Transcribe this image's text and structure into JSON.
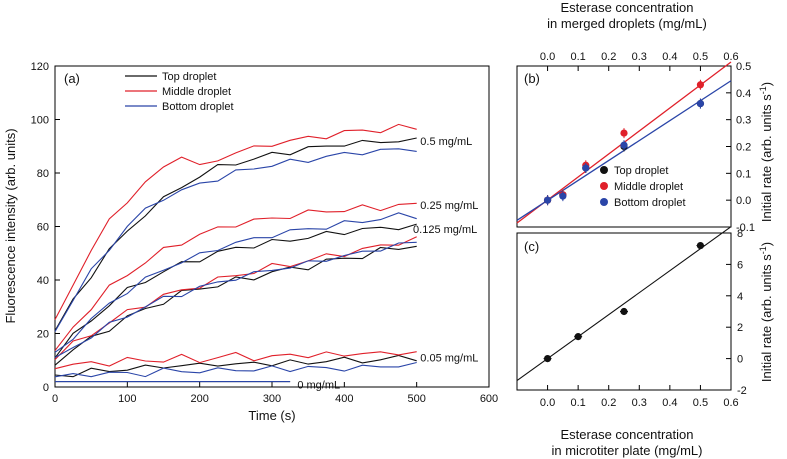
{
  "colors": {
    "top": "#111111",
    "middle": "#e0202a",
    "bottom": "#2a45a8",
    "fit_middle": "#e0202a",
    "fit_bottom": "#2a45a8"
  },
  "chart_data": [
    {
      "id": "a",
      "type": "line",
      "panel_label": "(a)",
      "xlabel": "Time (s)",
      "ylabel": "Fluorescence intensity (arb. units)",
      "xlim": [
        0,
        600
      ],
      "ylim": [
        0,
        120
      ],
      "xticks": [
        0,
        100,
        200,
        300,
        400,
        500,
        600
      ],
      "yticks": [
        0,
        20,
        40,
        60,
        80,
        100,
        120
      ],
      "legend": {
        "placement": "top-left",
        "entries": [
          "Top droplet",
          "Middle droplet",
          "Bottom droplet"
        ]
      },
      "annotations": [
        {
          "text": "0.5 mg/mL",
          "x": 505,
          "y": 92
        },
        {
          "text": "0.25 mg/mL",
          "x": 505,
          "y": 68
        },
        {
          "text": "0.125 mg/mL",
          "x": 495,
          "y": 59
        },
        {
          "text": "0.05 mg/mL",
          "x": 505,
          "y": 11
        },
        {
          "text": "0 mg/mL",
          "x": 335,
          "y": 1
        }
      ],
      "x": [
        0,
        25,
        50,
        75,
        100,
        125,
        150,
        175,
        200,
        225,
        250,
        275,
        300,
        325,
        350,
        375,
        400,
        425,
        450,
        475,
        500
      ],
      "series": [
        {
          "name": "Top droplet 0.5 mg/mL",
          "group": "top",
          "values": [
            21,
            32,
            42,
            51,
            58,
            65,
            70,
            75,
            79,
            82,
            84,
            85,
            87,
            88,
            89,
            90,
            91,
            91,
            92,
            92,
            92
          ]
        },
        {
          "name": "Middle droplet 0.5 mg/mL",
          "group": "middle",
          "values": [
            24,
            39,
            51,
            62,
            70,
            76,
            82,
            87,
            82,
            85,
            88,
            89,
            91,
            92,
            93,
            94,
            95,
            96,
            96,
            97,
            97
          ]
        },
        {
          "name": "Bottom droplet 0.5 mg/mL",
          "group": "bottom",
          "values": [
            21,
            33,
            43,
            52,
            60,
            66,
            71,
            73,
            76,
            78,
            80,
            82,
            83,
            84,
            85,
            86,
            87,
            88,
            88,
            89,
            89
          ]
        },
        {
          "name": "Top droplet 0.25 mg/mL",
          "group": "top",
          "values": [
            12,
            19,
            25,
            31,
            36,
            40,
            43,
            46,
            48,
            50,
            52,
            53,
            54,
            55,
            56,
            57,
            58,
            59,
            59,
            60,
            60
          ]
        },
        {
          "name": "Middle droplet 0.25 mg/mL",
          "group": "middle",
          "values": [
            13,
            22,
            30,
            37,
            42,
            47,
            51,
            54,
            57,
            59,
            61,
            62,
            63,
            64,
            65,
            66,
            66,
            67,
            67,
            68,
            68
          ]
        },
        {
          "name": "Bottom droplet 0.25 mg/mL",
          "group": "bottom",
          "values": [
            12,
            19,
            25,
            31,
            36,
            40,
            44,
            47,
            49,
            52,
            54,
            55,
            57,
            58,
            59,
            60,
            61,
            62,
            63,
            64,
            64
          ]
        },
        {
          "name": "Top droplet 0.125 mg/mL",
          "group": "top",
          "values": [
            9,
            14,
            18,
            22,
            26,
            29,
            32,
            35,
            37,
            38,
            40,
            41,
            43,
            44,
            45,
            47,
            48,
            49,
            51,
            52,
            53
          ]
        },
        {
          "name": "Middle droplet 0.125 mg/mL",
          "group": "middle",
          "values": [
            11,
            16,
            20,
            24,
            28,
            31,
            34,
            36,
            38,
            40,
            42,
            43,
            45,
            46,
            47,
            49,
            50,
            51,
            53,
            54,
            55
          ]
        },
        {
          "name": "Bottom droplet 0.125 mg/mL",
          "group": "bottom",
          "values": [
            10,
            15,
            19,
            23,
            27,
            30,
            33,
            35,
            37,
            39,
            41,
            42,
            44,
            45,
            46,
            48,
            49,
            50,
            52,
            53,
            54
          ]
        },
        {
          "name": "Top droplet 0.05 mg/mL",
          "group": "top",
          "values": [
            4,
            5,
            6,
            6,
            7,
            7,
            8,
            8,
            8,
            9,
            8,
            9,
            9,
            9,
            9,
            10,
            10,
            10,
            10,
            11,
            11
          ]
        },
        {
          "name": "Middle droplet 0.05 mg/mL",
          "group": "middle",
          "values": [
            8,
            8,
            9,
            9,
            10,
            10,
            10,
            11,
            10,
            11,
            12,
            11,
            11,
            12,
            12,
            12,
            12,
            13,
            12,
            13,
            13
          ]
        },
        {
          "name": "Bottom droplet 0.05 mg/mL",
          "group": "bottom",
          "values": [
            4,
            4,
            5,
            5,
            5,
            5,
            6,
            6,
            6,
            6,
            7,
            6,
            7,
            7,
            7,
            7,
            7,
            7,
            8,
            8,
            8
          ]
        },
        {
          "name": "Top droplet 0 mg/mL",
          "group": "top",
          "values": [
            2,
            2,
            2,
            2,
            2,
            2,
            2,
            2,
            2,
            2,
            2,
            2,
            2,
            2,
            null,
            null,
            null,
            null,
            null,
            null,
            null
          ]
        },
        {
          "name": "Bottom droplet 0 mg/mL",
          "group": "bottom",
          "values": [
            2,
            2,
            2,
            2,
            2,
            2,
            2,
            2,
            2,
            2,
            2,
            2,
            2,
            2,
            null,
            null,
            null,
            null,
            null,
            null,
            null
          ]
        }
      ]
    },
    {
      "id": "b",
      "type": "scatter",
      "panel_label": "(b)",
      "xlabel_top": [
        "Esterase concentration",
        "in merged droplets (mg/mL)"
      ],
      "ylabel": "Initial rate (arb. units s",
      "ylabel_sup": "-1",
      "ylabel_end": ")",
      "xlim": [
        -0.1,
        0.6
      ],
      "ylim": [
        -0.1,
        0.5
      ],
      "xticks": [
        0,
        0.1,
        0.2,
        0.3,
        0.4,
        0.5,
        0.6
      ],
      "xticklabels": [
        "0.0",
        "0.1",
        "0.2",
        "0.3",
        "0.4",
        "0.5",
        "0.6"
      ],
      "yticks": [
        -0.1,
        0,
        0.1,
        0.2,
        0.3,
        0.4,
        0.5
      ],
      "yticklabels": [
        "-0.1",
        "0.0",
        "0.1",
        "0.2",
        "0.3",
        "0.4",
        "0.5"
      ],
      "legend": {
        "placement": "bottom-right",
        "entries": [
          "Top droplet",
          "Middle droplet",
          "Bottom droplet"
        ]
      },
      "series": [
        {
          "name": "Top droplet",
          "group": "top",
          "x": [
            0,
            0.05,
            0.125,
            0.25,
            0.5
          ],
          "y": [
            0.0,
            0.02,
            0.12,
            0.2,
            0.36
          ]
        },
        {
          "name": "Middle droplet",
          "group": "middle",
          "x": [
            0,
            0.05,
            0.125,
            0.25,
            0.5
          ],
          "y": [
            0.0,
            0.02,
            0.13,
            0.25,
            0.43
          ]
        },
        {
          "name": "Bottom droplet",
          "group": "bottom",
          "x": [
            0,
            0.05,
            0.125,
            0.25,
            0.5
          ],
          "y": [
            0.0,
            0.015,
            0.12,
            0.205,
            0.36
          ]
        }
      ],
      "fits": [
        {
          "group": "fit_middle",
          "x": [
            -0.1,
            0.6
          ],
          "y": [
            -0.085,
            0.515
          ]
        },
        {
          "group": "fit_bottom",
          "x": [
            -0.1,
            0.6
          ],
          "y": [
            -0.075,
            0.445
          ]
        }
      ]
    },
    {
      "id": "c",
      "type": "scatter",
      "panel_label": "(c)",
      "xlabel": [
        "Esterase concentration",
        "in microtiter plate (mg/mL)"
      ],
      "ylabel": "Initial rate (arb. units s",
      "ylabel_sup": "-1",
      "ylabel_end": ")",
      "xlim": [
        -0.1,
        0.6
      ],
      "ylim": [
        -2,
        8
      ],
      "xticks": [
        0,
        0.1,
        0.2,
        0.3,
        0.4,
        0.5,
        0.6
      ],
      "xticklabels": [
        "0.0",
        "0.1",
        "0.2",
        "0.3",
        "0.4",
        "0.5",
        "0.6"
      ],
      "yticks": [
        -2,
        0,
        2,
        4,
        6,
        8
      ],
      "yticklabels": [
        "-2",
        "0",
        "2",
        "4",
        "6",
        "8"
      ],
      "series": [
        {
          "name": "Microtiter plate",
          "group": "top",
          "x": [
            0,
            0.1,
            0.25,
            0.5
          ],
          "y": [
            0.0,
            1.4,
            3.0,
            7.2
          ]
        }
      ],
      "fits": [
        {
          "group": "top",
          "x": [
            -0.1,
            0.6
          ],
          "y": [
            -1.4,
            8.4
          ]
        }
      ]
    }
  ]
}
